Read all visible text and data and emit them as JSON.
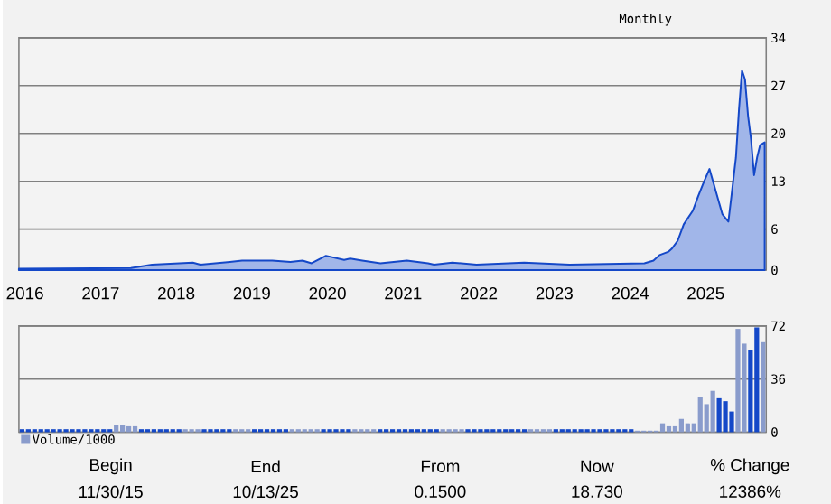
{
  "chart_data": [
    {
      "type": "area",
      "subtitle": "Monthly",
      "xlim": [
        2015.92,
        2025.8
      ],
      "xticks": [
        2016,
        2017,
        2018,
        2019,
        2020,
        2021,
        2022,
        2023,
        2024,
        2025
      ],
      "ylim": [
        0,
        34
      ],
      "yticks": [
        0,
        6,
        13,
        20,
        27,
        34
      ],
      "grid": "y",
      "series": [
        {
          "color": "#1448c8",
          "x": [
            2015.92,
            2017.4,
            2017.68,
            2018.22,
            2018.32,
            2018.71,
            2018.87,
            2019.27,
            2019.51,
            2019.67,
            2019.79,
            2019.98,
            2020.22,
            2020.3,
            2020.46,
            2020.7,
            2021.05,
            2021.33,
            2021.41,
            2021.65,
            2021.97,
            2022.6,
            2023.2,
            2024.19,
            2024.31,
            2024.39,
            2024.51,
            2024.55,
            2024.63,
            2024.71,
            2024.83,
            2024.9,
            2024.98,
            2025.05,
            2025.14,
            2025.22,
            2025.3,
            2025.34,
            2025.4,
            2025.44,
            2025.48,
            2025.52,
            2025.56,
            2025.6,
            2025.64,
            2025.68,
            2025.72,
            2025.78
          ],
          "values": [
            0.2,
            0.3,
            0.8,
            1.1,
            0.8,
            1.2,
            1.4,
            1.4,
            1.2,
            1.4,
            1.0,
            2.1,
            1.5,
            1.7,
            1.4,
            1.0,
            1.4,
            1.0,
            0.8,
            1.1,
            0.8,
            1.1,
            0.8,
            1.0,
            1.4,
            2.2,
            2.7,
            3.1,
            4.3,
            6.7,
            8.7,
            10.8,
            13.0,
            14.8,
            11.3,
            8.2,
            7.1,
            10.8,
            16.5,
            23.5,
            29.2,
            27.9,
            22.6,
            19.1,
            13.9,
            16.5,
            18.3,
            18.7
          ]
        }
      ]
    },
    {
      "type": "bar",
      "ylim": [
        0,
        72
      ],
      "yticks": [
        0,
        36,
        72
      ],
      "grid": "y",
      "tick_labels": "y",
      "legend": "bottom left",
      "categories": [
        null,
        null,
        null,
        null,
        null,
        null,
        null,
        null,
        null,
        null,
        null,
        null,
        null,
        null,
        null,
        null,
        null,
        null,
        null,
        null,
        null,
        null,
        null,
        null,
        null,
        null,
        null,
        null,
        null,
        null,
        null,
        null,
        null,
        null,
        null,
        null,
        null,
        null,
        null,
        null,
        null,
        null,
        null,
        null,
        null,
        null,
        null,
        null,
        null,
        null,
        null,
        null,
        null,
        null,
        null,
        null,
        null,
        null,
        null,
        null,
        null,
        null,
        null,
        null,
        null,
        null,
        null,
        null,
        null,
        null,
        null,
        null,
        null,
        null,
        null,
        null,
        null,
        null,
        null,
        null,
        null,
        null,
        null,
        null,
        null,
        null,
        null,
        null,
        null,
        null,
        null,
        null,
        null,
        null,
        null,
        null,
        null,
        null,
        null,
        null,
        null,
        null,
        null,
        null,
        null,
        null,
        null,
        null,
        null,
        null,
        null,
        null,
        null,
        null,
        null,
        null,
        null,
        null,
        null
      ],
      "series": [
        {
          "name": "Volume/1000",
          "color": "#8a9ccc",
          "values": [
            2,
            2,
            2,
            2,
            2,
            2,
            2,
            2,
            2,
            2,
            2,
            2,
            2,
            2,
            2,
            5,
            5,
            4,
            4,
            2,
            2,
            2,
            2,
            2,
            2,
            2,
            2,
            2,
            2,
            2,
            2,
            2,
            2,
            2,
            2,
            2,
            2,
            2,
            2,
            2,
            2,
            2,
            2,
            2,
            2,
            2,
            2,
            2,
            2,
            2,
            2,
            2,
            2,
            2,
            2,
            2,
            2,
            2,
            2,
            2,
            2,
            2,
            2,
            2,
            2,
            2,
            2,
            2,
            2,
            2,
            2,
            2,
            2,
            2,
            2,
            2,
            2,
            2,
            2,
            2,
            2,
            2,
            2,
            2,
            2,
            2,
            2,
            2,
            2,
            2,
            2,
            2,
            2,
            2,
            2,
            2,
            2,
            2,
            1,
            1,
            1,
            1,
            6,
            4,
            4,
            9,
            6,
            6,
            24,
            19,
            28,
            23,
            21,
            14,
            70,
            60,
            56,
            71,
            61
          ],
          "colors": [
            "#1448c8",
            "#1448c8",
            "#1448c8",
            "#1448c8",
            "#1448c8",
            "#1448c8",
            "#1448c8",
            "#1448c8",
            "#1448c8",
            "#1448c8",
            "#1448c8",
            "#1448c8",
            "#1448c8",
            "#1448c8",
            "#1448c8",
            "#8a9ccc",
            "#8a9ccc",
            "#8a9ccc",
            "#8a9ccc",
            "#1448c8",
            "#1448c8",
            "#1448c8",
            "#1448c8",
            "#1448c8",
            "#1448c8",
            "#1448c8",
            "#8a9ccc",
            "#8a9ccc",
            "#8a9ccc",
            "#1448c8",
            "#1448c8",
            "#1448c8",
            "#1448c8",
            "#1448c8",
            "#8a9ccc",
            "#8a9ccc",
            "#8a9ccc",
            "#1448c8",
            "#1448c8",
            "#1448c8",
            "#1448c8",
            "#1448c8",
            "#1448c8",
            "#8a9ccc",
            "#8a9ccc",
            "#8a9ccc",
            "#8a9ccc",
            "#8a9ccc",
            "#1448c8",
            "#1448c8",
            "#1448c8",
            "#1448c8",
            "#1448c8",
            "#8a9ccc",
            "#8a9ccc",
            "#8a9ccc",
            "#8a9ccc",
            "#1448c8",
            "#1448c8",
            "#1448c8",
            "#1448c8",
            "#1448c8",
            "#1448c8",
            "#1448c8",
            "#1448c8",
            "#1448c8",
            "#1448c8",
            "#8a9ccc",
            "#8a9ccc",
            "#8a9ccc",
            "#8a9ccc",
            "#1448c8",
            "#1448c8",
            "#1448c8",
            "#1448c8",
            "#1448c8",
            "#1448c8",
            "#1448c8",
            "#1448c8",
            "#1448c8",
            "#1448c8",
            "#8a9ccc",
            "#8a9ccc",
            "#8a9ccc",
            "#8a9ccc",
            "#1448c8",
            "#1448c8",
            "#1448c8",
            "#1448c8",
            "#1448c8",
            "#1448c8",
            "#1448c8",
            "#1448c8",
            "#1448c8",
            "#1448c8",
            "#1448c8",
            "#1448c8",
            "#1448c8",
            "#8a9ccc",
            "#8a9ccc",
            "#8a9ccc",
            "#8a9ccc",
            "#8a9ccc",
            "#8a9ccc",
            "#8a9ccc",
            "#8a9ccc",
            "#8a9ccc",
            "#8a9ccc",
            "#8a9ccc",
            "#8a9ccc",
            "#8a9ccc",
            "#1448c8",
            "#1448c8",
            "#1448c8",
            "#8a9ccc",
            "#8a9ccc",
            "#1448c8",
            "#1448c8",
            "#8a9ccc"
          ]
        }
      ],
      "annotations": [
        "Begin",
        "11/30/15",
        "End",
        "10/13/25",
        "From",
        "0.1500",
        "Now",
        "18.730",
        "% Change",
        "12386%"
      ]
    }
  ]
}
